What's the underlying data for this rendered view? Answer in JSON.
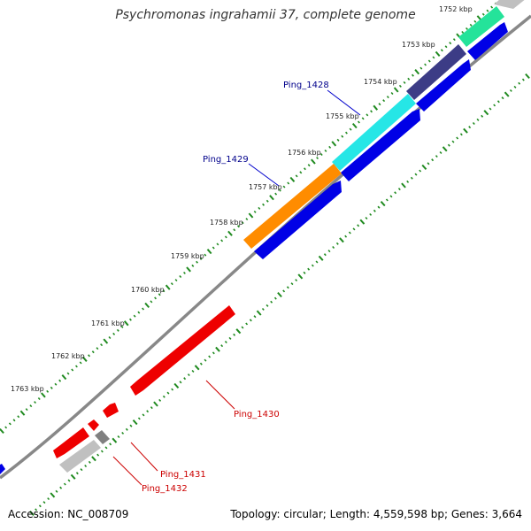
{
  "title": "Psychromonas ingrahamii 37, complete genome",
  "footer": {
    "accession": "Accession: NC_008709",
    "summary": "Topology: circular; Length: 4,559,598 bp; Genes: 3,664"
  },
  "colors": {
    "backbone": "#888888",
    "dots": "#1f8a1f",
    "forward_label": "#00008b",
    "reverse_label": "#cc0000"
  },
  "kbp_labels": [
    "1752 kbp",
    "1753 kbp",
    "1754 kbp",
    "1755 kbp",
    "1756 kbp",
    "1757 kbp",
    "1758 kbp",
    "1759 kbp",
    "1760 kbp",
    "1761 kbp",
    "1762 kbp",
    "1763 kbp"
  ],
  "gene_labels": {
    "ping_1428": "Ping_1428",
    "ping_1429": "Ping_1429",
    "ping_1430": "Ping_1430",
    "ping_1431": "Ping_1431",
    "ping_1432": "Ping_1432"
  }
}
